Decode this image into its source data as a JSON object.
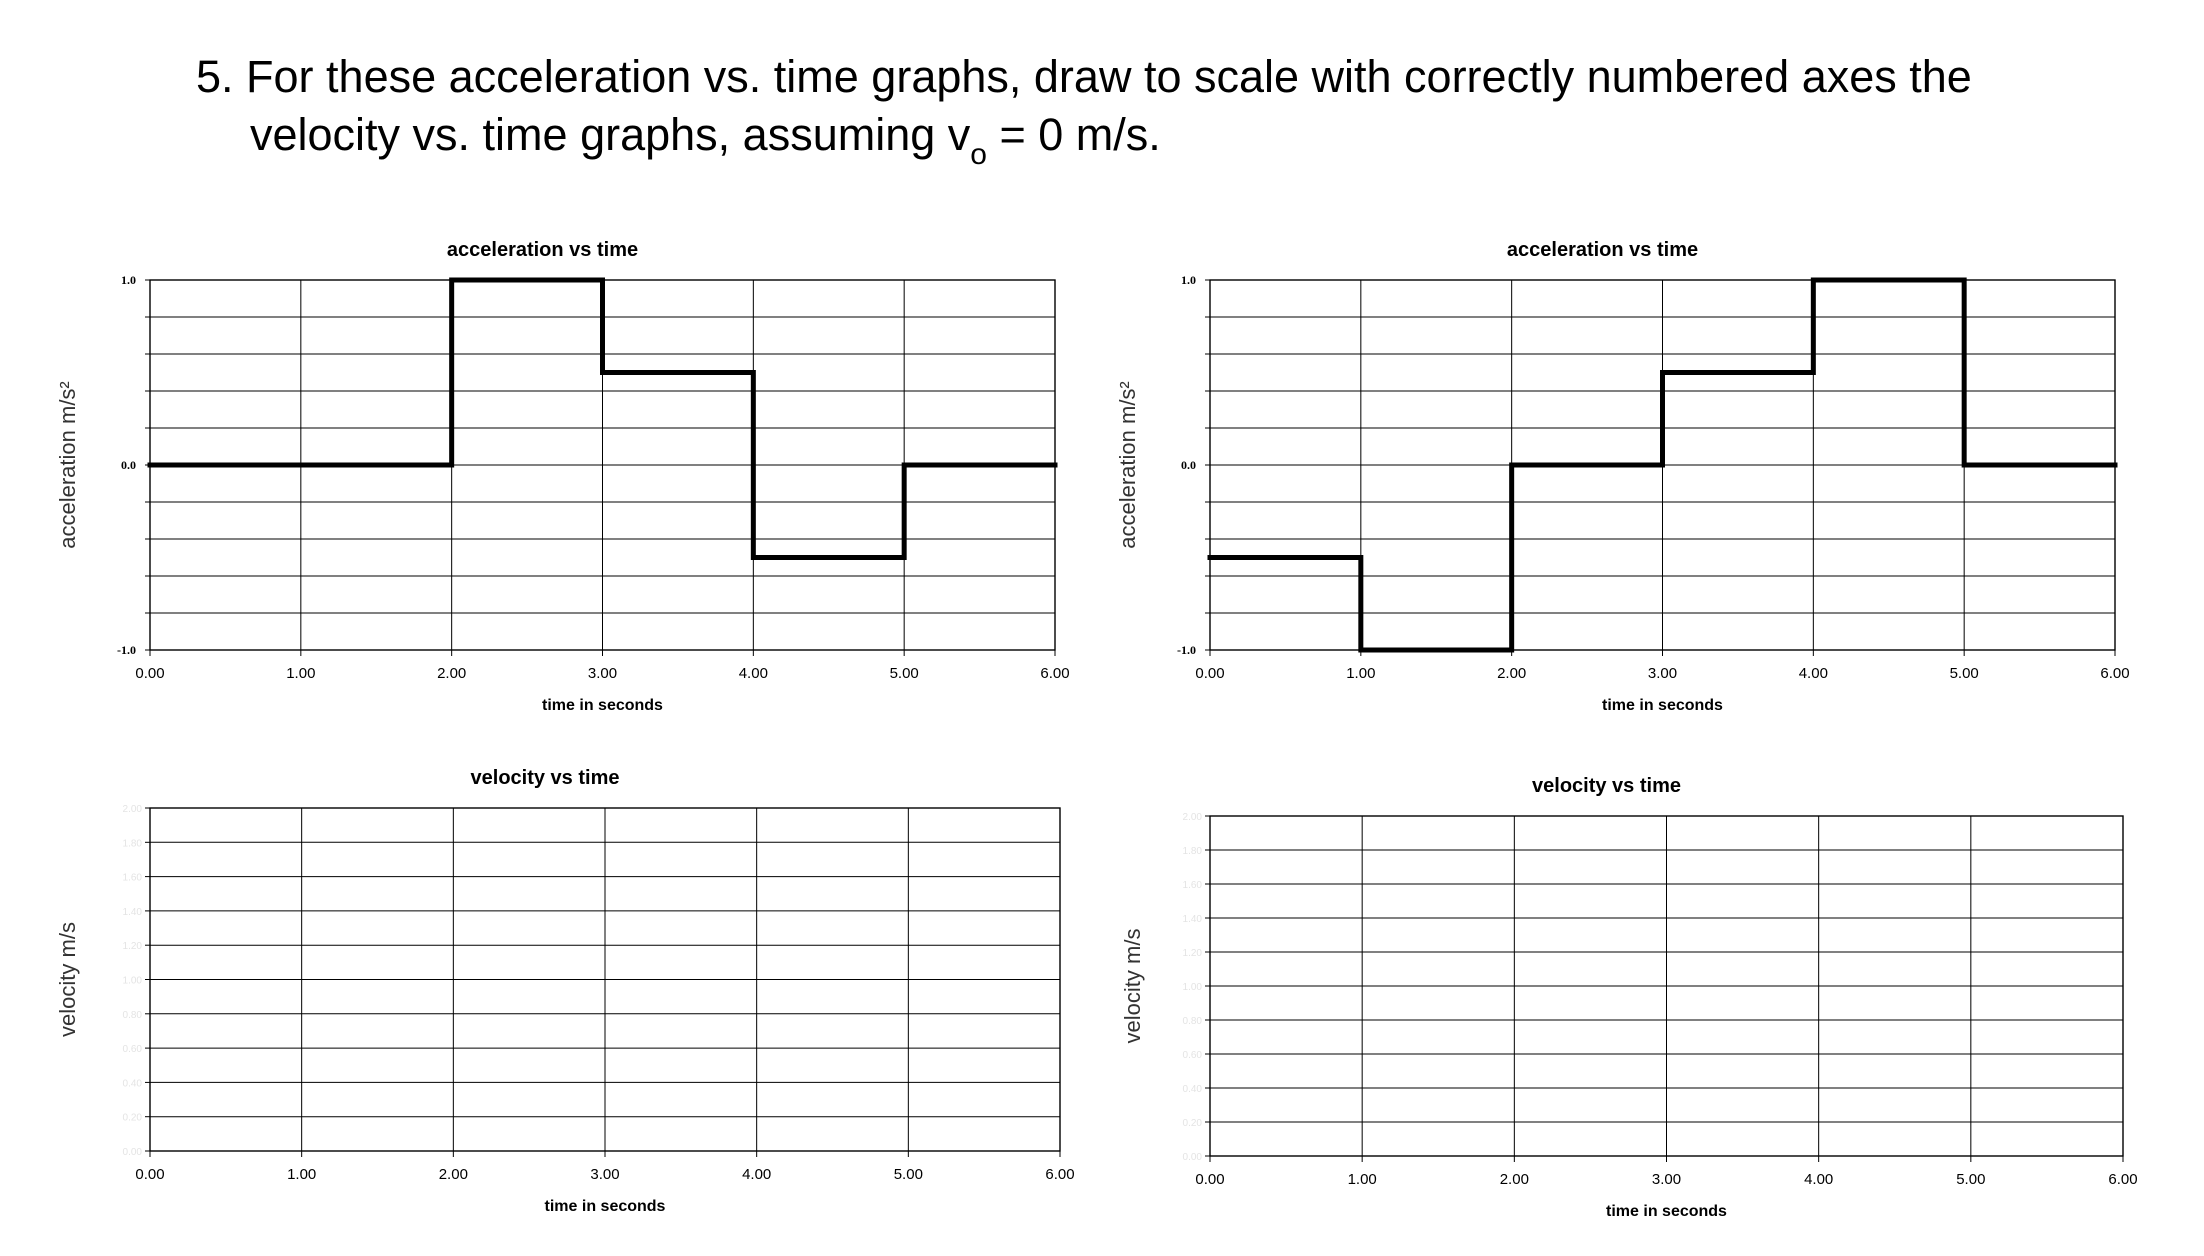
{
  "question": {
    "number": "5.",
    "line1": "For these acceleration vs. time graphs, draw to scale with correctly numbered axes the",
    "line2_before": "velocity vs. time graphs, assuming v",
    "line2_sub": "o",
    "line2_after": " = 0 m/s."
  },
  "chart_data": [
    {
      "type": "line",
      "title": "acceleration vs time",
      "xlabel": "time in seconds",
      "ylabel": "acceleration m/s²",
      "xlim": [
        0,
        6
      ],
      "ylim": [
        -1,
        1
      ],
      "x_ticks": [
        "0.00",
        "1.00",
        "2.00",
        "3.00",
        "4.00",
        "5.00",
        "6.00"
      ],
      "y_ticks": [
        "1.0",
        "0.0",
        "-1.0"
      ],
      "grid": true,
      "series": [
        {
          "x": [
            0,
            2,
            2,
            3,
            3,
            4,
            4,
            5,
            5,
            6
          ],
          "y": [
            0,
            0,
            1,
            1,
            0.5,
            0.5,
            -0.5,
            -0.5,
            0,
            0
          ]
        }
      ]
    },
    {
      "type": "line",
      "title": "acceleration vs time",
      "xlabel": "time in seconds",
      "ylabel": "acceleration m/s²",
      "xlim": [
        0,
        6
      ],
      "ylim": [
        -1,
        1
      ],
      "x_ticks": [
        "0.00",
        "1.00",
        "2.00",
        "3.00",
        "4.00",
        "5.00",
        "6.00"
      ],
      "y_ticks": [
        "1.0",
        "0.0",
        "-1.0"
      ],
      "grid": true,
      "series": [
        {
          "x": [
            0,
            1,
            1,
            2,
            2,
            3,
            3,
            4,
            4,
            5,
            5,
            6
          ],
          "y": [
            -0.5,
            -0.5,
            -1,
            -1,
            0,
            0,
            0.5,
            0.5,
            1,
            1,
            0,
            0
          ]
        }
      ]
    },
    {
      "type": "line",
      "title": "velocity vs time",
      "xlabel": "time in seconds",
      "ylabel": "velocity m/s",
      "xlim": [
        0,
        6
      ],
      "x_ticks": [
        "0.00",
        "1.00",
        "2.00",
        "3.00",
        "4.00",
        "5.00",
        "6.00"
      ],
      "y_ticks": [],
      "grid": true,
      "series": []
    },
    {
      "type": "line",
      "title": "velocity vs time",
      "xlabel": "time in seconds",
      "ylabel": "velocity m/s",
      "xlim": [
        0,
        6
      ],
      "x_ticks": [
        "0.00",
        "1.00",
        "2.00",
        "3.00",
        "4.00",
        "5.00",
        "6.00"
      ],
      "y_ticks": [],
      "grid": true,
      "series": []
    }
  ]
}
